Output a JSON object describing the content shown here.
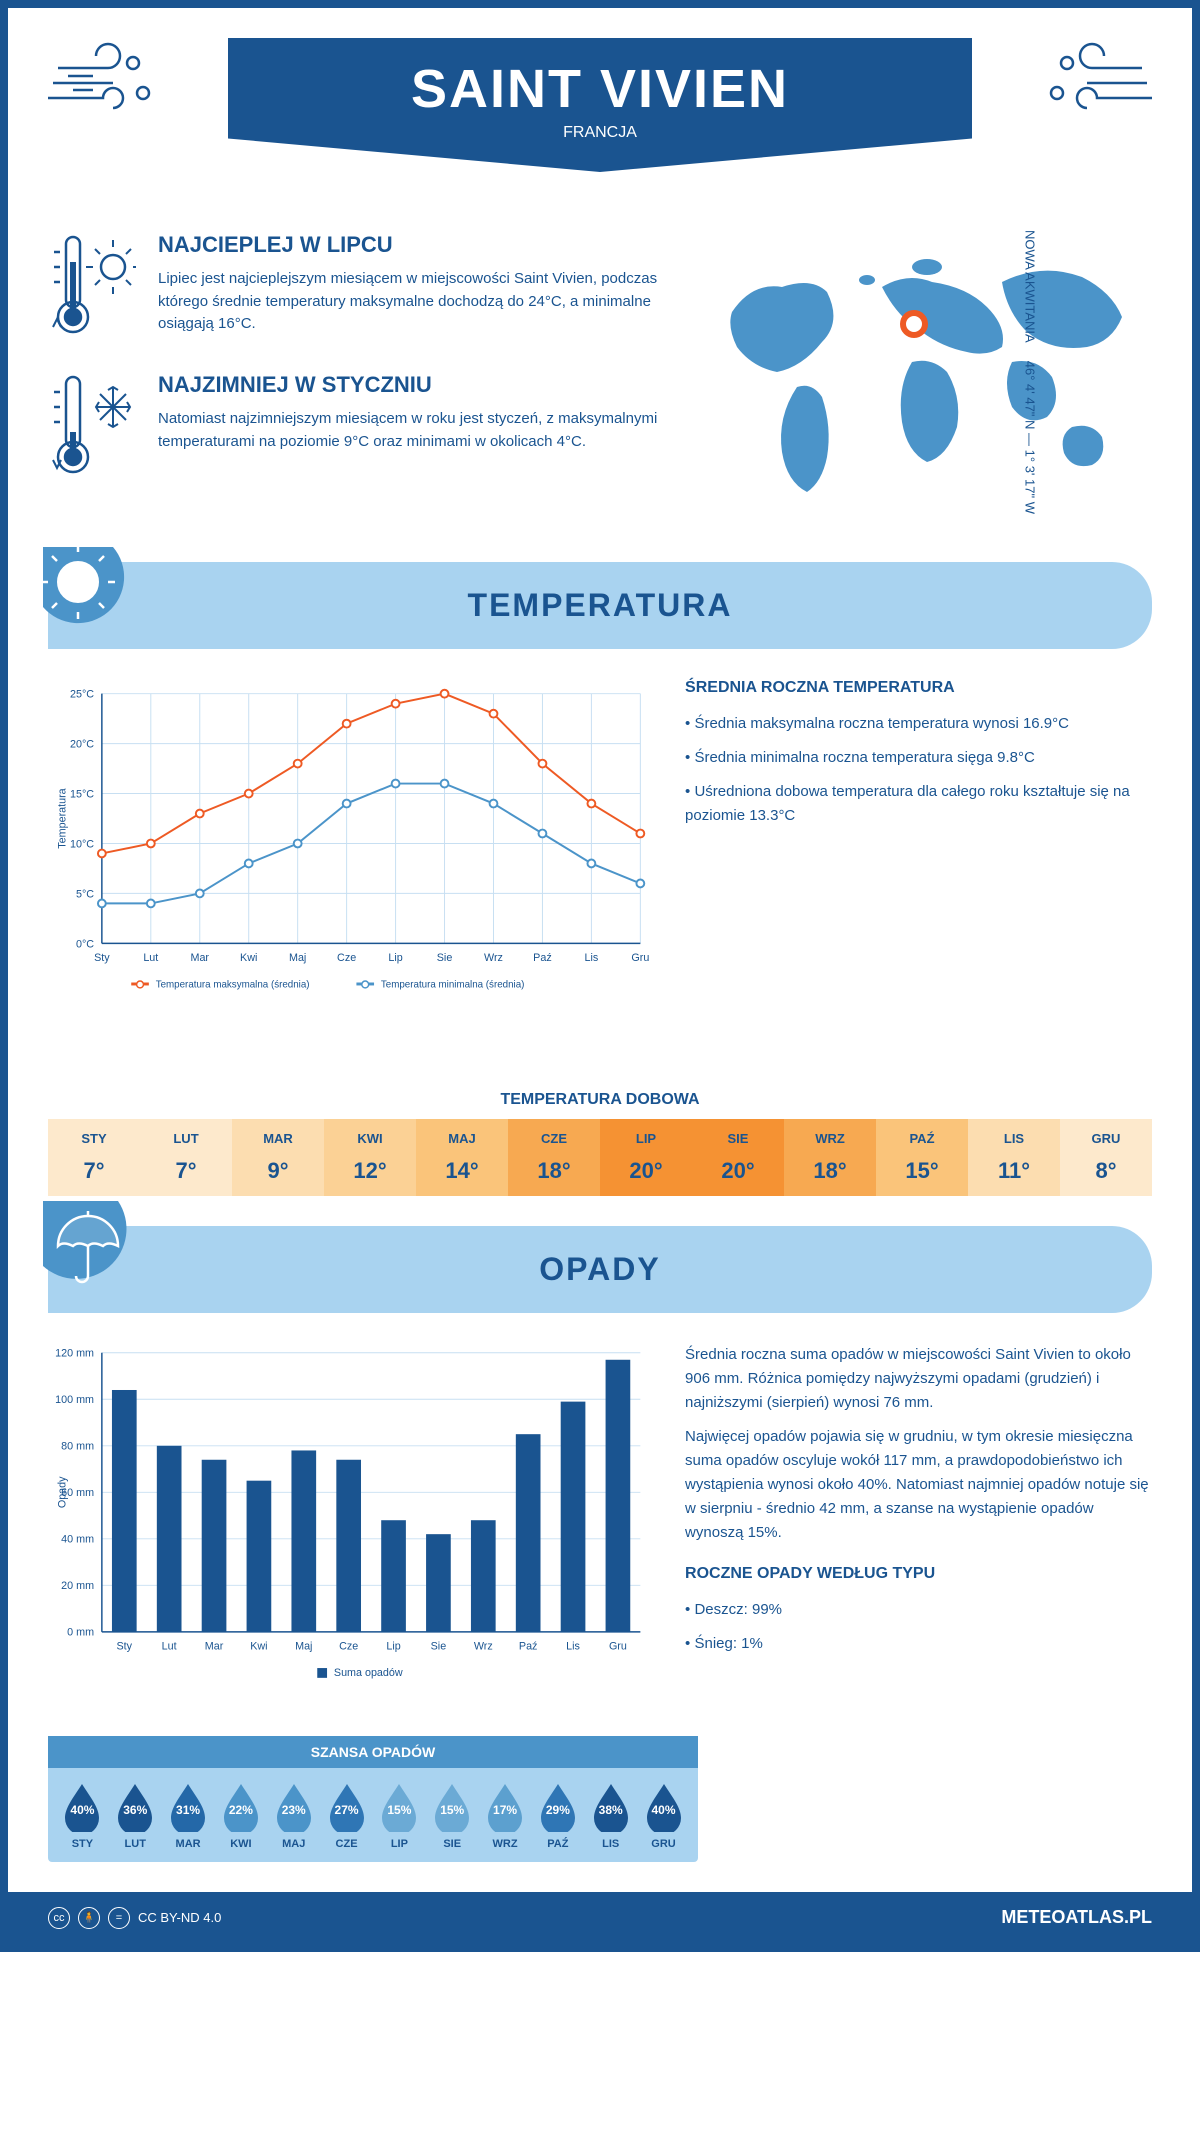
{
  "header": {
    "title": "SAINT VIVIEN",
    "subtitle": "FRANCJA"
  },
  "warmest": {
    "title": "NAJCIEPLEJ W LIPCU",
    "text": "Lipiec jest najcieplejszym miesiącem w miejscowości Saint Vivien, podczas którego średnie temperatury maksymalne dochodzą do 24°C, a minimalne osiągają 16°C."
  },
  "coldest": {
    "title": "NAJZIMNIEJ W STYCZNIU",
    "text": "Natomiast najzimniejszym miesiącem w roku jest styczeń, z maksymalnymi temperaturami na poziomie 9°C oraz minimami w okolicach 4°C."
  },
  "coords": {
    "region": "NOWA AKWITANIA",
    "lat": "46° 4' 47\" N",
    "lon": "1° 3' 17\" W"
  },
  "temp_section": {
    "title": "TEMPERATURA",
    "chart": {
      "type": "line",
      "ylabel": "Temperatura",
      "months": [
        "Sty",
        "Lut",
        "Mar",
        "Kwi",
        "Maj",
        "Cze",
        "Lip",
        "Sie",
        "Wrz",
        "Paź",
        "Lis",
        "Gru"
      ],
      "max_series": [
        9,
        10,
        13,
        15,
        18,
        22,
        24,
        25,
        23,
        18,
        14,
        11
      ],
      "min_series": [
        4,
        4,
        5,
        8,
        10,
        14,
        16,
        16,
        14,
        11,
        8,
        6
      ],
      "max_color": "#ee5a24",
      "min_color": "#4b94c9",
      "grid_color": "#c7dff2",
      "axis_color": "#1a5490",
      "ylim": [
        0,
        25
      ],
      "ytick_step": 5,
      "legend_max": "Temperatura maksymalna (średnia)",
      "legend_min": "Temperatura minimalna (średnia)",
      "label_fontsize": 11
    },
    "stats_title": "ŚREDNIA ROCZNA TEMPERATURA",
    "stats": [
      "Średnia maksymalna roczna temperatura wynosi 16.9°C",
      "Średnia minimalna roczna temperatura sięga 9.8°C",
      "Uśredniona dobowa temperatura dla całego roku kształtuje się na poziomie 13.3°C"
    ]
  },
  "daily_table": {
    "title": "TEMPERATURA DOBOWA",
    "months": [
      "STY",
      "LUT",
      "MAR",
      "KWI",
      "MAJ",
      "CZE",
      "LIP",
      "SIE",
      "WRZ",
      "PAŹ",
      "LIS",
      "GRU"
    ],
    "values": [
      "7°",
      "7°",
      "9°",
      "12°",
      "14°",
      "18°",
      "20°",
      "20°",
      "18°",
      "15°",
      "11°",
      "8°"
    ],
    "colors": [
      "#fde9cc",
      "#fde9cc",
      "#fcddb0",
      "#fbd195",
      "#fac47a",
      "#f7a951",
      "#f59233",
      "#f59233",
      "#f7a951",
      "#fac47a",
      "#fcddb0",
      "#fde9cc"
    ]
  },
  "precip_section": {
    "title": "OPADY",
    "chart": {
      "type": "bar",
      "ylabel": "Opady",
      "months": [
        "Sty",
        "Lut",
        "Mar",
        "Kwi",
        "Maj",
        "Cze",
        "Lip",
        "Sie",
        "Wrz",
        "Paź",
        "Lis",
        "Gru"
      ],
      "values": [
        104,
        80,
        74,
        65,
        78,
        74,
        48,
        42,
        48,
        85,
        99,
        117
      ],
      "bar_color": "#1a5490",
      "grid_color": "#c7dff2",
      "axis_color": "#1a5490",
      "ylim": [
        0,
        120
      ],
      "ytick_step": 20,
      "bar_width": 0.55,
      "legend": "Suma opadów",
      "label_fontsize": 11
    },
    "text1": "Średnia roczna suma opadów w miejscowości Saint Vivien to około 906 mm. Różnica pomiędzy najwyższymi opadami (grudzień) i najniższymi (sierpień) wynosi 76 mm.",
    "text2": "Najwięcej opadów pojawia się w grudniu, w tym okresie miesięczna suma opadów oscyluje wokół 117 mm, a prawdopodobieństwo ich wystąpienia wynosi około 40%. Natomiast najmniej opadów notuje się w sierpniu - średnio 42 mm, a szanse na wystąpienie opadów wynoszą 15%.",
    "bytype_title": "ROCZNE OPADY WEDŁUG TYPU",
    "bytype": [
      "Deszcz: 99%",
      "Śnieg: 1%"
    ]
  },
  "chance": {
    "title": "SZANSA OPADÓW",
    "months": [
      "STY",
      "LUT",
      "MAR",
      "KWI",
      "MAJ",
      "CZE",
      "LIP",
      "SIE",
      "WRZ",
      "PAŹ",
      "LIS",
      "GRU"
    ],
    "values": [
      "40%",
      "36%",
      "31%",
      "22%",
      "23%",
      "27%",
      "15%",
      "15%",
      "17%",
      "29%",
      "38%",
      "40%"
    ],
    "colors": [
      "#1a5490",
      "#1a5490",
      "#2468a8",
      "#4b94c9",
      "#4b94c9",
      "#2f76b5",
      "#6baad5",
      "#6baad5",
      "#5ca0cf",
      "#2f76b5",
      "#1a5490",
      "#1a5490"
    ]
  },
  "footer": {
    "license": "CC BY-ND 4.0",
    "site": "METEOATLAS.PL"
  },
  "colors": {
    "brand": "#1a5490",
    "light_blue": "#a9d3f0"
  }
}
